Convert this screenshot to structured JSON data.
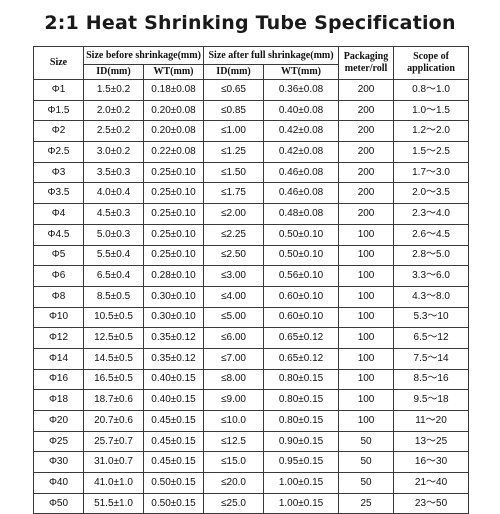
{
  "title": "2:1 Heat Shrinking Tube Specification",
  "headers": {
    "size": "Size",
    "before": "Size before shrinkage(mm)",
    "after": "Size after full shrinkage(mm)",
    "packaging": "Packaging meter/roll",
    "scope": "Scope of application",
    "id": "ID(mm)",
    "wt": "WT(mm)"
  },
  "rows": [
    {
      "size": "Φ1",
      "id_before": "1.5±0.2",
      "wt_before": "0.18±0.08",
      "id_after": "≤0.65",
      "wt_after": "0.36±0.08",
      "packaging": "200",
      "scope": "0.8～1.0"
    },
    {
      "size": "Φ1.5",
      "id_before": "2.0±0.2",
      "wt_before": "0.20±0.08",
      "id_after": "≤0.85",
      "wt_after": "0.40±0.08",
      "packaging": "200",
      "scope": "1.0～1.5"
    },
    {
      "size": "Φ2",
      "id_before": "2.5±0.2",
      "wt_before": "0.20±0.08",
      "id_after": "≤1.00",
      "wt_after": "0.42±0.08",
      "packaging": "200",
      "scope": "1.2～2.0"
    },
    {
      "size": "Φ2.5",
      "id_before": "3.0±0.2",
      "wt_before": "0.22±0.08",
      "id_after": "≤1.25",
      "wt_after": "0.42±0.08",
      "packaging": "200",
      "scope": "1.5～2.5"
    },
    {
      "size": "Φ3",
      "id_before": "3.5±0.3",
      "wt_before": "0.25±0.10",
      "id_after": "≤1.50",
      "wt_after": "0.46±0.08",
      "packaging": "200",
      "scope": "1.7～3.0"
    },
    {
      "size": "Φ3.5",
      "id_before": "4.0±0.4",
      "wt_before": "0.25±0.10",
      "id_after": "≤1.75",
      "wt_after": "0.46±0.08",
      "packaging": "200",
      "scope": "2.0～3.5"
    },
    {
      "size": "Φ4",
      "id_before": "4.5±0.3",
      "wt_before": "0.25±0.10",
      "id_after": "≤2.00",
      "wt_after": "0.48±0.08",
      "packaging": "200",
      "scope": "2.3～4.0"
    },
    {
      "size": "Φ4.5",
      "id_before": "5.0±0.3",
      "wt_before": "0.25±0.10",
      "id_after": "≤2.25",
      "wt_after": "0.50±0.10",
      "packaging": "100",
      "scope": "2.6～4.5"
    },
    {
      "size": "Φ5",
      "id_before": "5.5±0.4",
      "wt_before": "0.25±0.10",
      "id_after": "≤2.50",
      "wt_after": "0.50±0.10",
      "packaging": "100",
      "scope": "2.8～5.0"
    },
    {
      "size": "Φ6",
      "id_before": "6.5±0.4",
      "wt_before": "0.28±0.10",
      "id_after": "≤3.00",
      "wt_after": "0.56±0.10",
      "packaging": "100",
      "scope": "3.3～6.0"
    },
    {
      "size": "Φ8",
      "id_before": "8.5±0.5",
      "wt_before": "0.30±0.10",
      "id_after": "≤4.00",
      "wt_after": "0.60±0.10",
      "packaging": "100",
      "scope": "4.3～8.0"
    },
    {
      "size": "Φ10",
      "id_before": "10.5±0.5",
      "wt_before": "0.30±0.10",
      "id_after": "≤5.00",
      "wt_after": "0.60±0.10",
      "packaging": "100",
      "scope": "5.3～10"
    },
    {
      "size": "Φ12",
      "id_before": "12.5±0.5",
      "wt_before": "0.35±0.12",
      "id_after": "≤6.00",
      "wt_after": "0.65±0.12",
      "packaging": "100",
      "scope": "6.5～12"
    },
    {
      "size": "Φ14",
      "id_before": "14.5±0.5",
      "wt_before": "0.35±0.12",
      "id_after": "≤7.00",
      "wt_after": "0.65±0.12",
      "packaging": "100",
      "scope": "7.5～14"
    },
    {
      "size": "Φ16",
      "id_before": "16.5±0.5",
      "wt_before": "0.40±0.15",
      "id_after": "≤8.00",
      "wt_after": "0.80±0.15",
      "packaging": "100",
      "scope": "8.5～16"
    },
    {
      "size": "Φ18",
      "id_before": "18.7±0.6",
      "wt_before": "0.40±0.15",
      "id_after": "≤9.00",
      "wt_after": "0.80±0.15",
      "packaging": "100",
      "scope": "9.5～18"
    },
    {
      "size": "Φ20",
      "id_before": "20.7±0.6",
      "wt_before": "0.45±0.15",
      "id_after": "≤10.0",
      "wt_after": "0.80±0.15",
      "packaging": "100",
      "scope": "11～20"
    },
    {
      "size": "Φ25",
      "id_before": "25.7±0.7",
      "wt_before": "0.45±0.15",
      "id_after": "≤12.5",
      "wt_after": "0.90±0.15",
      "packaging": "50",
      "scope": "13～25"
    },
    {
      "size": "Φ30",
      "id_before": "31.0±0.7",
      "wt_before": "0.45±0.15",
      "id_after": "≤15.0",
      "wt_after": "0.95±0.15",
      "packaging": "50",
      "scope": "16～30"
    },
    {
      "size": "Φ40",
      "id_before": "41.0±1.0",
      "wt_before": "0.50±0.15",
      "id_after": "≤20.0",
      "wt_after": "1.00±0.15",
      "packaging": "50",
      "scope": "21～40"
    },
    {
      "size": "Φ50",
      "id_before": "51.5±1.0",
      "wt_before": "0.50±0.15",
      "id_after": "≤25.0",
      "wt_after": "1.00±0.15",
      "packaging": "25",
      "scope": "23～50"
    }
  ]
}
